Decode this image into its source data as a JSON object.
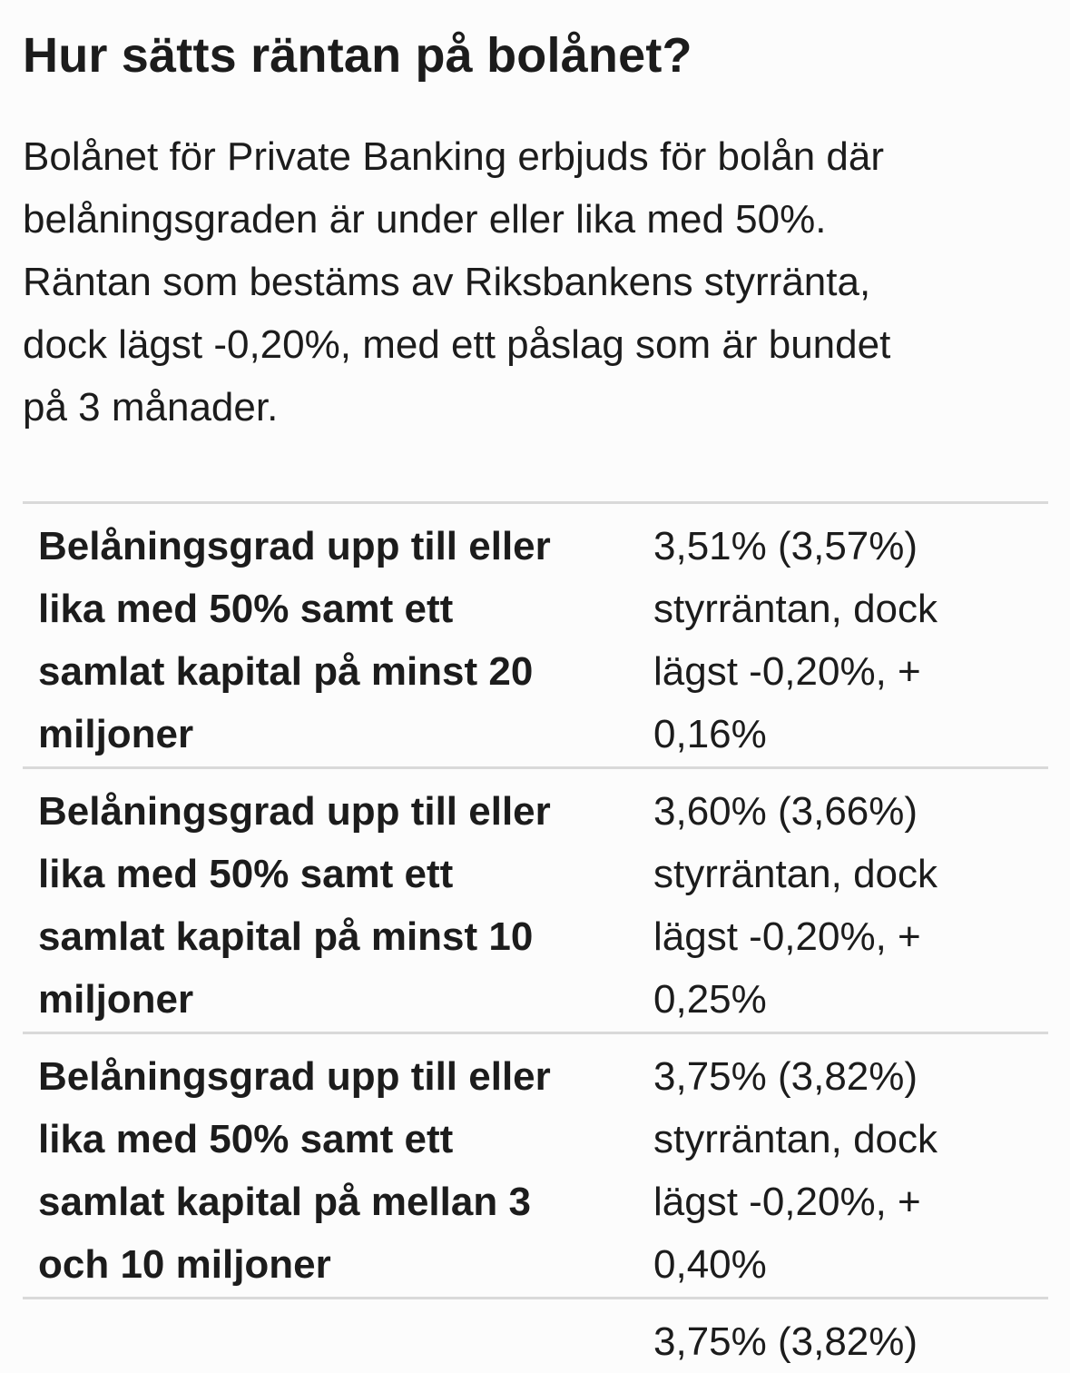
{
  "heading": "Hur sätts räntan på bolånet?",
  "intro": {
    "lines": [
      "Bolånet för Private Banking erbjuds för bolån där",
      "belåningsgraden är under eller lika med 50%.",
      "Räntan som bestäms av Riksbankens styrränta,",
      "dock lägst -0,20%, med ett påslag som är bundet",
      "på 3 månader."
    ]
  },
  "rate_table": {
    "rows": [
      {
        "label_lines": [
          "Belåningsgrad upp till eller",
          "lika med 50% samt ett",
          "samlat kapital på minst 20",
          "miljoner"
        ],
        "value_lines": [
          "3,51% (3,57%)",
          "styrräntan, dock",
          "lägst -0,20%, +",
          "0,16%"
        ]
      },
      {
        "label_lines": [
          "Belåningsgrad upp till eller",
          "lika med 50% samt ett",
          "samlat kapital på minst 10",
          "miljoner"
        ],
        "value_lines": [
          "3,60% (3,66%)",
          "styrräntan, dock",
          "lägst -0,20%, +",
          "0,25%"
        ]
      },
      {
        "label_lines": [
          "Belåningsgrad upp till eller",
          "lika med 50% samt ett",
          "samlat kapital på mellan 3",
          "och 10 miljoner"
        ],
        "value_lines": [
          "3,75% (3,82%)",
          "styrräntan, dock",
          "lägst -0,20%, +",
          "0,40%"
        ]
      },
      {
        "label_lines": [
          ""
        ],
        "value_lines": [
          "3,75% (3,82%)"
        ]
      }
    ]
  }
}
